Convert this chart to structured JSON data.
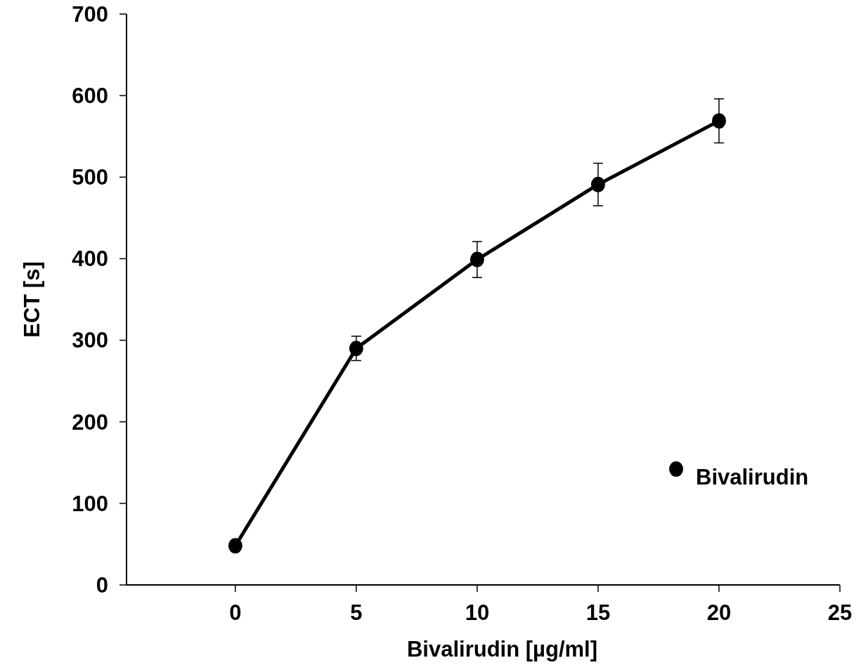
{
  "chart_data": {
    "type": "line",
    "xlabel": "Bivalirudin [µg/ml]",
    "ylabel": "ECT [s]",
    "xlim": [
      -4.5,
      25
    ],
    "xticks": [
      0,
      5,
      10,
      15,
      20,
      25
    ],
    "ylim": [
      0,
      700
    ],
    "yticks": [
      0,
      100,
      200,
      300,
      400,
      500,
      600,
      700
    ],
    "x": [
      0,
      5,
      10,
      15,
      20
    ],
    "series": [
      {
        "name": "Bivalirudin",
        "color": "#000000",
        "values": [
          48,
          290,
          399,
          491,
          569
        ],
        "errors": [
          null,
          15,
          22,
          26,
          27
        ]
      }
    ],
    "marker": "circle",
    "line_style": "solid",
    "grid": false,
    "legend": "bottom right"
  }
}
